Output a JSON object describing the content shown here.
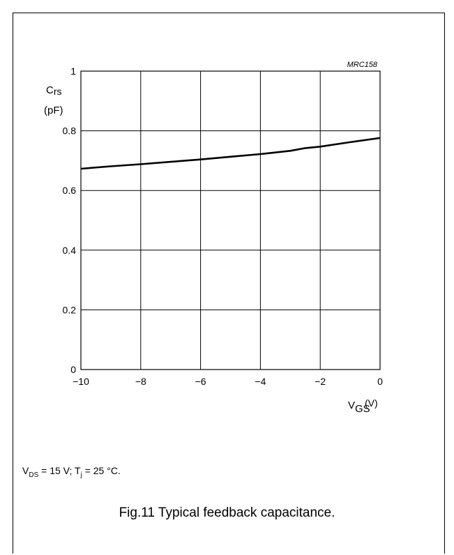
{
  "figure": {
    "code": "MRC158",
    "caption": "Fig.11  Typical feedback capacitance.",
    "conditions": {
      "vds_symbol": "V",
      "vds_sub": "DS",
      "vds_value": " = 15 V; T",
      "tj_sub": "j",
      "tj_value": " = 25 °C."
    }
  },
  "chart_data": {
    "type": "line",
    "title": "",
    "ylabel": {
      "symbol": "C",
      "sub": "rs",
      "unit": "(pF)"
    },
    "xlabel": {
      "symbol": "V",
      "sub": "GS",
      "unit": "(V)"
    },
    "xlim": [
      -10,
      0
    ],
    "ylim": [
      0,
      1
    ],
    "grid": true,
    "xticks": [
      -10,
      -8,
      -6,
      -4,
      -2,
      0
    ],
    "xtick_labels": [
      "−10",
      "−8",
      "−6",
      "−4",
      "−2",
      "0"
    ],
    "yticks": [
      0,
      0.2,
      0.4,
      0.6,
      0.8,
      1
    ],
    "ytick_labels": [
      "0",
      "0.2",
      "0.4",
      "0.6",
      "0.8",
      "1"
    ],
    "series": [
      {
        "x": [
          -10,
          -9,
          -8,
          -7,
          -6,
          -5,
          -4,
          -3,
          -2.5,
          -2,
          -1,
          0
        ],
        "y": [
          0.673,
          0.681,
          0.688,
          0.696,
          0.704,
          0.713,
          0.722,
          0.733,
          0.742,
          0.747,
          0.762,
          0.776
        ]
      }
    ]
  }
}
